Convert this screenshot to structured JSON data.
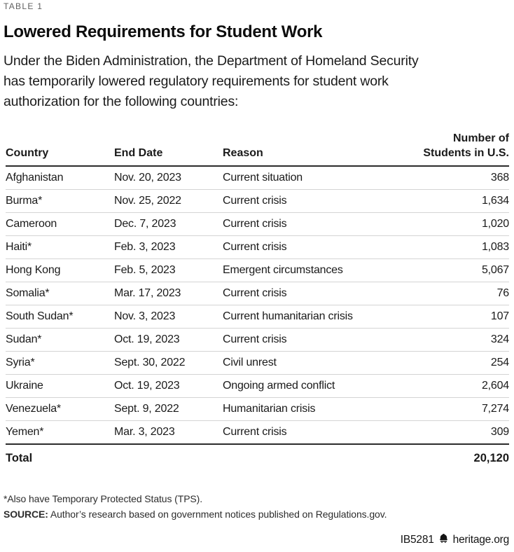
{
  "page": {
    "table_label": "TABLE 1",
    "title": "Lowered Requirements for Student Work",
    "intro_lines": [
      "Under the Biden Administration, the Department of Homeland Security",
      "has temporarily lowered regulatory requirements for student work",
      "authorization for the following countries:"
    ]
  },
  "chart_data": {
    "type": "table",
    "columns": [
      "Country",
      "End Date",
      "Reason",
      "Number of Students in U.S."
    ],
    "rows": [
      {
        "country": "Afghanistan",
        "end_date": "Nov. 20, 2023",
        "reason": "Current situation",
        "students": "368"
      },
      {
        "country": "Burma*",
        "end_date": "Nov. 25, 2022",
        "reason": "Current crisis",
        "students": "1,634"
      },
      {
        "country": "Cameroon",
        "end_date": "Dec. 7, 2023",
        "reason": "Current crisis",
        "students": "1,020"
      },
      {
        "country": "Haiti*",
        "end_date": "Feb. 3, 2023",
        "reason": "Current crisis",
        "students": "1,083"
      },
      {
        "country": "Hong Kong",
        "end_date": "Feb. 5, 2023",
        "reason": "Emergent circumstances",
        "students": "5,067"
      },
      {
        "country": "Somalia*",
        "end_date": "Mar. 17, 2023",
        "reason": "Current crisis",
        "students": "76"
      },
      {
        "country": "South Sudan*",
        "end_date": "Nov. 3, 2023",
        "reason": "Current humanitarian crisis",
        "students": "107"
      },
      {
        "country": "Sudan*",
        "end_date": "Oct. 19, 2023",
        "reason": "Current crisis",
        "students": "324"
      },
      {
        "country": "Syria*",
        "end_date": "Sept. 30, 2022",
        "reason": "Civil unrest",
        "students": "254"
      },
      {
        "country": "Ukraine",
        "end_date": "Oct. 19, 2023",
        "reason": "Ongoing armed conflict",
        "students": "2,604"
      },
      {
        "country": "Venezuela*",
        "end_date": "Sept. 9, 2022",
        "reason": "Humanitarian crisis",
        "students": "7,274"
      },
      {
        "country": "Yemen*",
        "end_date": "Mar. 3, 2023",
        "reason": "Current crisis",
        "students": "309"
      }
    ],
    "total_label": "Total",
    "total_value": "20,120"
  },
  "footnotes": {
    "asterisk_note": "*Also have Temporary Protected Status (TPS).",
    "source_label": "SOURCE:",
    "source_text": " Author’s research based on government notices published on Regulations.gov."
  },
  "footer": {
    "doc_id": "IB5281",
    "site": "heritage.org",
    "bell_icon": "liberty-bell-icon"
  },
  "colors": {
    "text": "#1a1a1a",
    "muted_label": "#606060",
    "rule_dark": "#2b2b2b",
    "rule_light": "#d4d4d4",
    "background": "#ffffff"
  }
}
